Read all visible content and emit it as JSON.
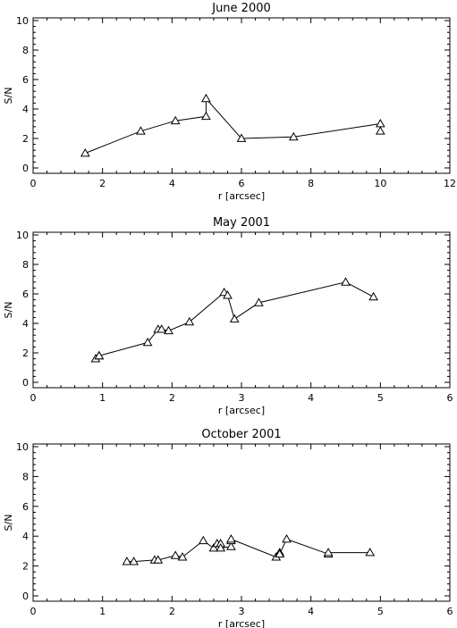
{
  "chart_data": [
    {
      "type": "line",
      "title": "June 2000",
      "xlabel": "r [arcsec]",
      "ylabel": "S/N",
      "xlim": [
        0,
        12
      ],
      "ylim": [
        0,
        10
      ],
      "xticks": [
        0,
        2,
        4,
        6,
        8,
        10,
        12
      ],
      "yticks": [
        0,
        2,
        4,
        6,
        8,
        10
      ],
      "marker": "triangle",
      "series": [
        {
          "x": [
            1.5,
            3.1,
            4.1,
            4.98,
            4.98,
            6.0,
            7.5,
            10.0,
            10.0
          ],
          "y": [
            1.0,
            2.5,
            3.2,
            3.5,
            4.7,
            2.0,
            2.1,
            3.0,
            2.5
          ]
        }
      ]
    },
    {
      "type": "line",
      "title": "May 2001",
      "xlabel": "r [arcsec]",
      "ylabel": "S/N",
      "xlim": [
        0,
        6
      ],
      "ylim": [
        0,
        10
      ],
      "xticks": [
        0,
        1,
        2,
        3,
        4,
        5,
        6
      ],
      "yticks": [
        0,
        2,
        4,
        6,
        8,
        10
      ],
      "marker": "triangle",
      "series": [
        {
          "x": [
            0.9,
            0.95,
            0.95,
            1.65,
            1.8,
            1.85,
            1.95,
            2.25,
            2.75,
            2.8,
            2.9,
            3.25,
            4.5,
            4.9
          ],
          "y": [
            1.6,
            1.8,
            1.8,
            2.7,
            3.6,
            3.6,
            3.5,
            4.1,
            6.1,
            5.9,
            4.3,
            5.4,
            6.8,
            5.8
          ]
        }
      ]
    },
    {
      "type": "line",
      "title": "October 2001",
      "xlabel": "r [arcsec]",
      "ylabel": "S/N",
      "xlim": [
        0,
        6
      ],
      "ylim": [
        0,
        10
      ],
      "xticks": [
        0,
        1,
        2,
        3,
        4,
        5,
        6
      ],
      "yticks": [
        0,
        2,
        4,
        6,
        8,
        10
      ],
      "marker": "triangle",
      "series": [
        {
          "x": [
            1.35,
            1.45,
            1.75,
            1.8,
            2.05,
            2.15,
            2.45,
            2.6,
            2.65,
            2.7,
            2.7,
            2.85,
            2.85,
            2.85,
            3.5,
            3.55,
            3.55,
            3.65,
            4.25,
            4.25,
            4.85
          ],
          "y": [
            2.3,
            2.3,
            2.4,
            2.4,
            2.7,
            2.6,
            3.7,
            3.2,
            3.5,
            3.5,
            3.2,
            3.3,
            3.7,
            3.8,
            2.6,
            2.9,
            2.8,
            3.8,
            2.8,
            2.9,
            2.9
          ]
        }
      ]
    }
  ]
}
